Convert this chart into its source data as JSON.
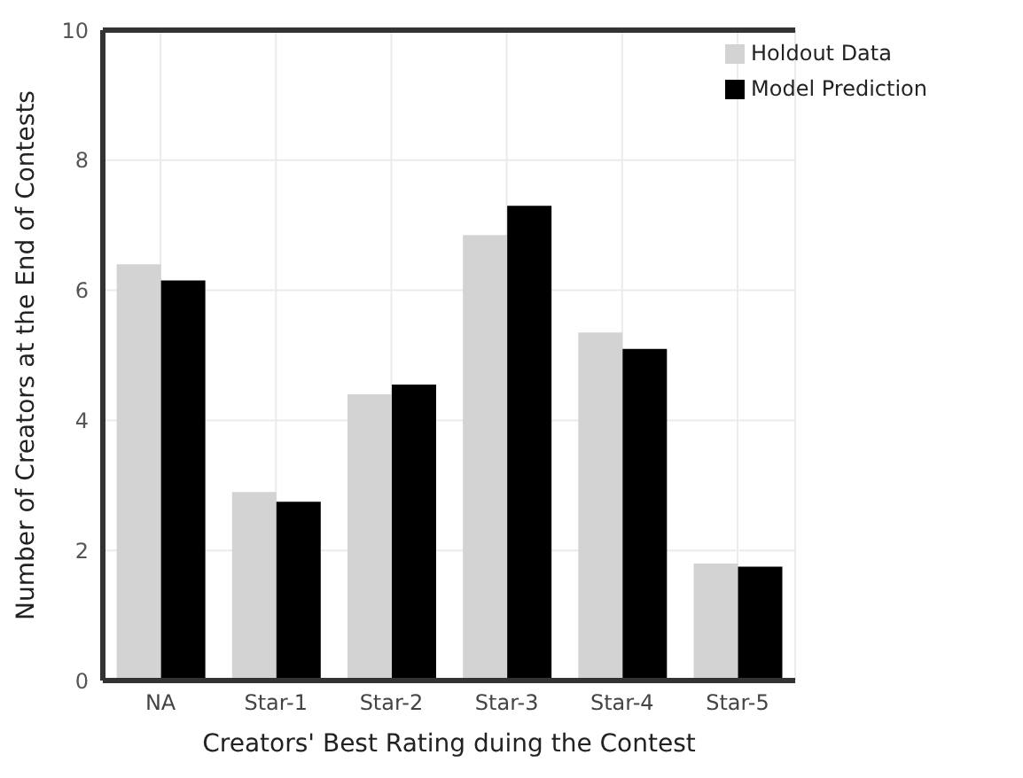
{
  "chart_data": {
    "type": "bar",
    "categories": [
      "NA",
      "Star-1",
      "Star-2",
      "Star-3",
      "Star-4",
      "Star-5"
    ],
    "series": [
      {
        "name": "Holdout Data",
        "color": "#d3d3d3",
        "values": [
          6.4,
          2.9,
          4.4,
          6.85,
          5.35,
          1.8
        ]
      },
      {
        "name": "Model Prediction",
        "color": "#000000",
        "values": [
          6.15,
          2.75,
          4.55,
          7.3,
          5.1,
          1.75
        ]
      }
    ],
    "xlabel": "Creators' Best Rating duing the Contest",
    "ylabel": "Number of Creators at the End of Contests",
    "ylim": [
      0,
      10
    ],
    "yticks": [
      0,
      2,
      4,
      6,
      8,
      10
    ],
    "grid": true,
    "legend": "top right"
  }
}
